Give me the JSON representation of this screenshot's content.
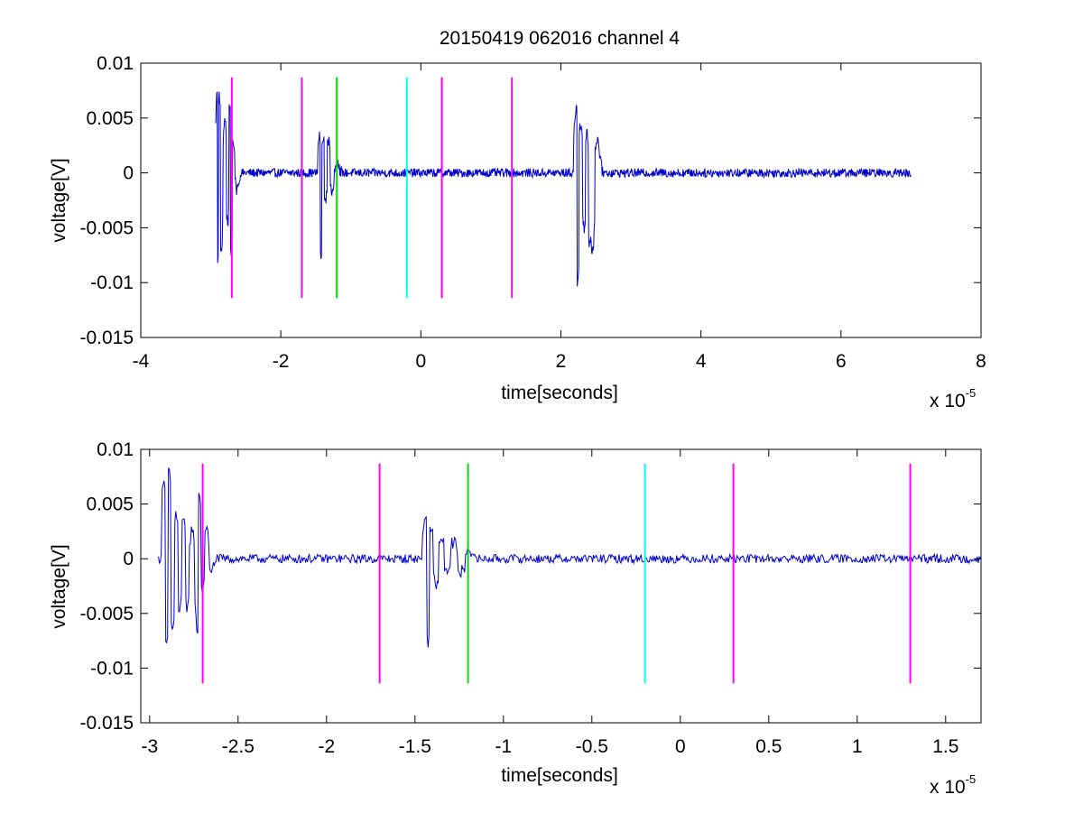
{
  "figure_title": "20150419 062016 channel 4",
  "chart_data": [
    {
      "type": "line",
      "title": "20150419 062016 channel 4",
      "xlabel": "time[seconds]",
      "ylabel": "voltage[V]",
      "x_multiplier_label": "x 10",
      "x_multiplier_exponent": "-5",
      "x_scale": 1e-05,
      "xlim": [
        -4,
        8
      ],
      "ylim": [
        -0.015,
        0.01
      ],
      "xticks": [
        -4,
        -2,
        0,
        2,
        4,
        6,
        8
      ],
      "xtick_labels": [
        "-4",
        "-2",
        "0",
        "2",
        "4",
        "6",
        "8"
      ],
      "yticks": [
        -0.015,
        -0.01,
        -0.005,
        0,
        0.005,
        0.01
      ],
      "ytick_labels": [
        "-0.015",
        "-0.01",
        "-0.005",
        "0",
        "0.005",
        "0.01"
      ],
      "grid": false,
      "series": [
        {
          "color": "#0000cc",
          "x_range": [
            -2.93,
            7.0
          ],
          "baseline_noise": 0.0004,
          "bursts": [
            {
              "start": -2.93,
              "end": -2.58,
              "peaks": [
                [
                  -2.91,
                  0.0078
                ],
                [
                  -2.9,
                  -0.0082
                ],
                [
                  -2.88,
                  0.0072
                ],
                [
                  -2.85,
                  -0.0073
                ],
                [
                  -2.8,
                  0.005
                ],
                [
                  -2.76,
                  -0.0047
                ],
                [
                  -2.73,
                  0.0062
                ],
                [
                  -2.71,
                  -0.0071
                ],
                [
                  -2.68,
                  0.0028
                ],
                [
                  -2.63,
                  -0.0015
                ]
              ]
            },
            {
              "start": -1.47,
              "end": -1.13,
              "peaks": [
                [
                  -1.45,
                  0.0035
                ],
                [
                  -1.43,
                  -0.0075
                ],
                [
                  -1.4,
                  0.0032
                ],
                [
                  -1.36,
                  -0.0022
                ],
                [
                  -1.32,
                  0.0028
                ],
                [
                  -1.27,
                  -0.0018
                ],
                [
                  -1.2,
                  0.001
                ]
              ]
            },
            {
              "start": 2.18,
              "end": 2.6,
              "peaks": [
                [
                  2.22,
                  0.0062
                ],
                [
                  2.24,
                  -0.0103
                ],
                [
                  2.28,
                  0.0045
                ],
                [
                  2.33,
                  -0.005
                ],
                [
                  2.37,
                  0.0036
                ],
                [
                  2.41,
                  -0.0065
                ],
                [
                  2.45,
                  -0.0072
                ],
                [
                  2.52,
                  0.003
                ]
              ]
            }
          ]
        }
      ],
      "vertical_markers": [
        {
          "x": -2.7,
          "color": "#ff00ff",
          "y_range": [
            -0.0114,
            0.0087
          ]
        },
        {
          "x": -1.7,
          "color": "#ff00ff",
          "y_range": [
            -0.0114,
            0.0087
          ]
        },
        {
          "x": -1.2,
          "color": "#00dd00",
          "y_range": [
            -0.0114,
            0.0087
          ]
        },
        {
          "x": -0.2,
          "color": "#00ffff",
          "y_range": [
            -0.0114,
            0.0087
          ]
        },
        {
          "x": 0.3,
          "color": "#ff00ff",
          "y_range": [
            -0.0114,
            0.0087
          ]
        },
        {
          "x": 1.3,
          "color": "#ff00ff",
          "y_range": [
            -0.0114,
            0.0087
          ]
        }
      ]
    },
    {
      "type": "line",
      "title": "",
      "xlabel": "time[seconds]",
      "ylabel": "voltage[V]",
      "x_multiplier_label": "x 10",
      "x_multiplier_exponent": "-5",
      "x_scale": 1e-05,
      "xlim": [
        -3.05,
        1.7
      ],
      "ylim": [
        -0.015,
        0.01
      ],
      "xticks": [
        -3,
        -2.5,
        -2,
        -1.5,
        -1,
        -0.5,
        0,
        0.5,
        1,
        1.5
      ],
      "xtick_labels": [
        "-3",
        "-2.5",
        "-2",
        "-1.5",
        "-1",
        "-0.5",
        "0",
        "0.5",
        "1",
        "1.5"
      ],
      "yticks": [
        -0.015,
        -0.01,
        -0.005,
        0,
        0.005,
        0.01
      ],
      "ytick_labels": [
        "-0.015",
        "-0.01",
        "-0.005",
        "0",
        "0.005",
        "0.01"
      ],
      "grid": false,
      "series": [
        {
          "color": "#0000cc",
          "x_range": [
            -2.95,
            1.7
          ],
          "baseline_noise": 0.0004,
          "bursts": [
            {
              "start": -2.93,
              "end": -2.62,
              "peaks": [
                [
                  -2.92,
                  0.0077
                ],
                [
                  -2.905,
                  -0.0082
                ],
                [
                  -2.89,
                  0.008
                ],
                [
                  -2.87,
                  -0.0067
                ],
                [
                  -2.85,
                  0.004
                ],
                [
                  -2.83,
                  -0.005
                ],
                [
                  -2.81,
                  0.0035
                ],
                [
                  -2.79,
                  -0.0045
                ],
                [
                  -2.76,
                  0.0025
                ],
                [
                  -2.73,
                  -0.007
                ],
                [
                  -2.72,
                  0.0063
                ],
                [
                  -2.7,
                  -0.003
                ],
                [
                  -2.68,
                  0.003
                ],
                [
                  -2.65,
                  -0.001
                ]
              ]
            },
            {
              "start": -1.46,
              "end": -1.17,
              "peaks": [
                [
                  -1.44,
                  0.0033
                ],
                [
                  -1.425,
                  -0.0077
                ],
                [
                  -1.41,
                  0.0028
                ],
                [
                  -1.38,
                  -0.0022
                ],
                [
                  -1.35,
                  0.0018
                ],
                [
                  -1.32,
                  -0.0015
                ],
                [
                  -1.28,
                  0.0016
                ],
                [
                  -1.24,
                  -0.0012
                ],
                [
                  -1.19,
                  0.0008
                ]
              ]
            }
          ]
        }
      ],
      "vertical_markers": [
        {
          "x": -2.7,
          "color": "#ff00ff",
          "y_range": [
            -0.0114,
            0.0087
          ]
        },
        {
          "x": -1.7,
          "color": "#ff00ff",
          "y_range": [
            -0.0114,
            0.0087
          ]
        },
        {
          "x": -1.2,
          "color": "#00dd00",
          "y_range": [
            -0.0114,
            0.0087
          ]
        },
        {
          "x": -0.2,
          "color": "#00ffff",
          "y_range": [
            -0.0114,
            0.0087
          ]
        },
        {
          "x": 0.3,
          "color": "#ff00ff",
          "y_range": [
            -0.0114,
            0.0087
          ]
        },
        {
          "x": 1.3,
          "color": "#ff00ff",
          "y_range": [
            -0.0114,
            0.0087
          ]
        }
      ]
    }
  ]
}
